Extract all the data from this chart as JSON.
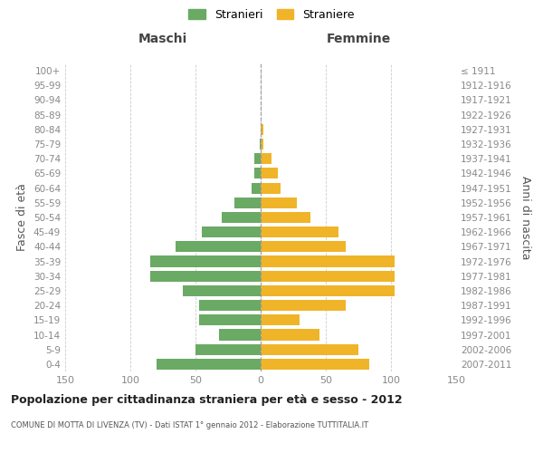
{
  "age_groups": [
    "0-4",
    "5-9",
    "10-14",
    "15-19",
    "20-24",
    "25-29",
    "30-34",
    "35-39",
    "40-44",
    "45-49",
    "50-54",
    "55-59",
    "60-64",
    "65-69",
    "70-74",
    "75-79",
    "80-84",
    "85-89",
    "90-94",
    "95-99",
    "100+"
  ],
  "birth_years": [
    "2007-2011",
    "2002-2006",
    "1997-2001",
    "1992-1996",
    "1987-1991",
    "1982-1986",
    "1977-1981",
    "1972-1976",
    "1967-1971",
    "1962-1966",
    "1957-1961",
    "1952-1956",
    "1947-1951",
    "1942-1946",
    "1937-1941",
    "1932-1936",
    "1927-1931",
    "1922-1926",
    "1917-1921",
    "1912-1916",
    "≤ 1911"
  ],
  "maschi": [
    80,
    50,
    32,
    47,
    47,
    60,
    85,
    85,
    65,
    45,
    30,
    20,
    7,
    5,
    5,
    1,
    0,
    0,
    0,
    0,
    0
  ],
  "femmine": [
    83,
    75,
    45,
    30,
    65,
    103,
    103,
    103,
    65,
    60,
    38,
    28,
    15,
    13,
    8,
    2,
    2,
    0,
    0,
    0,
    0
  ],
  "color_maschi": "#6aaa64",
  "color_femmine": "#f0b429",
  "xlim": 150,
  "xlabel_left": "Maschi",
  "xlabel_right": "Femmine",
  "ylabel": "Fasce di età",
  "ylabel_right": "Anni di nascita",
  "legend_stranieri": "Stranieri",
  "legend_straniere": "Straniere",
  "title": "Popolazione per cittadinanza straniera per età e sesso - 2012",
  "subtitle": "COMUNE DI MOTTA DI LIVENZA (TV) - Dati ISTAT 1° gennaio 2012 - Elaborazione TUTTITALIA.IT",
  "bg_color": "#ffffff",
  "grid_color": "#cccccc",
  "tick_color": "#888888"
}
